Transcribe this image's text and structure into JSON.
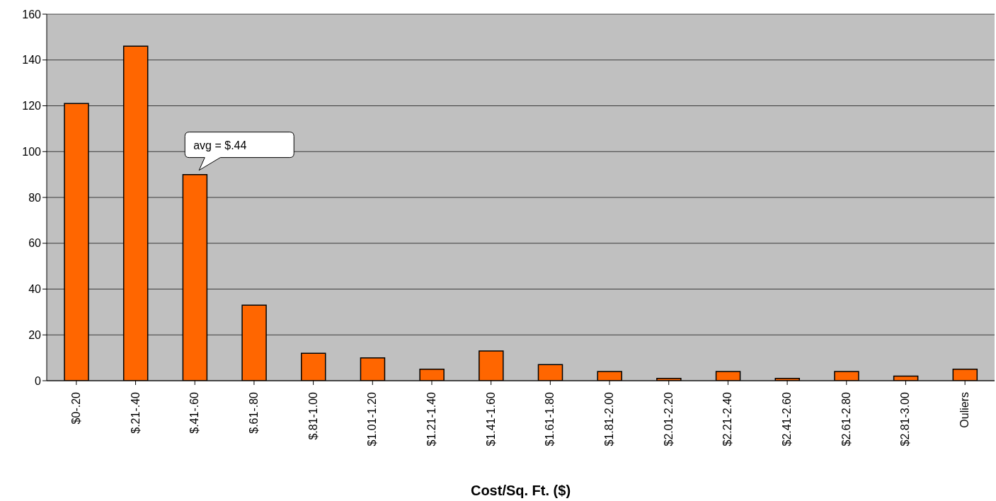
{
  "chart_data": {
    "type": "bar",
    "xlabel": "Cost/Sq. Ft. ($)",
    "categories": [
      "$0-.20",
      "$.21-.40",
      "$.41-.60",
      "$.61-.80",
      "$.81-1.00",
      "$1.01-1.20",
      "$1.21-1.40",
      "$1.41-1.60",
      "$1.61-1.80",
      "$1.81-2.00",
      "$2.01-2.20",
      "$2.21-2.40",
      "$2.41-2.60",
      "$2.61-2.80",
      "$2.81-3.00",
      "Ouliers"
    ],
    "values": [
      121,
      146,
      90,
      33,
      12,
      10,
      5,
      13,
      7,
      4,
      1,
      4,
      1,
      4,
      2,
      5
    ],
    "color": "#ff6600",
    "ylim": [
      0,
      160
    ],
    "yticks": [
      0,
      20,
      40,
      60,
      80,
      100,
      120,
      140,
      160
    ],
    "grid": "y",
    "annotations": [
      {
        "text": "avg = $.44",
        "x": "$.41-.60",
        "y": 90
      }
    ]
  }
}
